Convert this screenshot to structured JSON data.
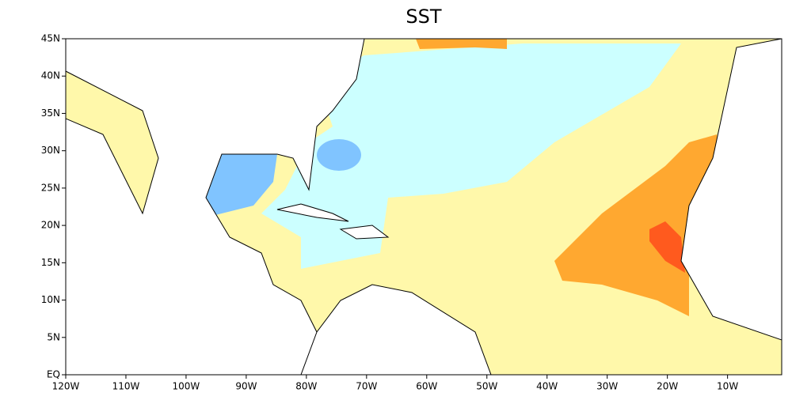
{
  "chart_data": {
    "type": "map",
    "title": "SST",
    "xlim": [
      -120,
      -1
    ],
    "ylim": [
      0,
      45
    ],
    "xticks": [
      {
        "value": -120,
        "label": "120W"
      },
      {
        "value": -110,
        "label": "110W"
      },
      {
        "value": -100,
        "label": "100W"
      },
      {
        "value": -90,
        "label": "90W"
      },
      {
        "value": -80,
        "label": "80W"
      },
      {
        "value": -70,
        "label": "70W"
      },
      {
        "value": -60,
        "label": "60W"
      },
      {
        "value": -50,
        "label": "50W"
      },
      {
        "value": -40,
        "label": "40W"
      },
      {
        "value": -30,
        "label": "30W"
      },
      {
        "value": -20,
        "label": "20W"
      },
      {
        "value": -10,
        "label": "10W"
      }
    ],
    "yticks": [
      {
        "value": 0,
        "label": "EQ"
      },
      {
        "value": 5,
        "label": "5N"
      },
      {
        "value": 10,
        "label": "10N"
      },
      {
        "value": 15,
        "label": "15N"
      },
      {
        "value": 20,
        "label": "20N"
      },
      {
        "value": 25,
        "label": "25N"
      },
      {
        "value": 30,
        "label": "30N"
      },
      {
        "value": 35,
        "label": "35N"
      },
      {
        "value": 40,
        "label": "40N"
      },
      {
        "value": 45,
        "label": "45N"
      }
    ]
  }
}
